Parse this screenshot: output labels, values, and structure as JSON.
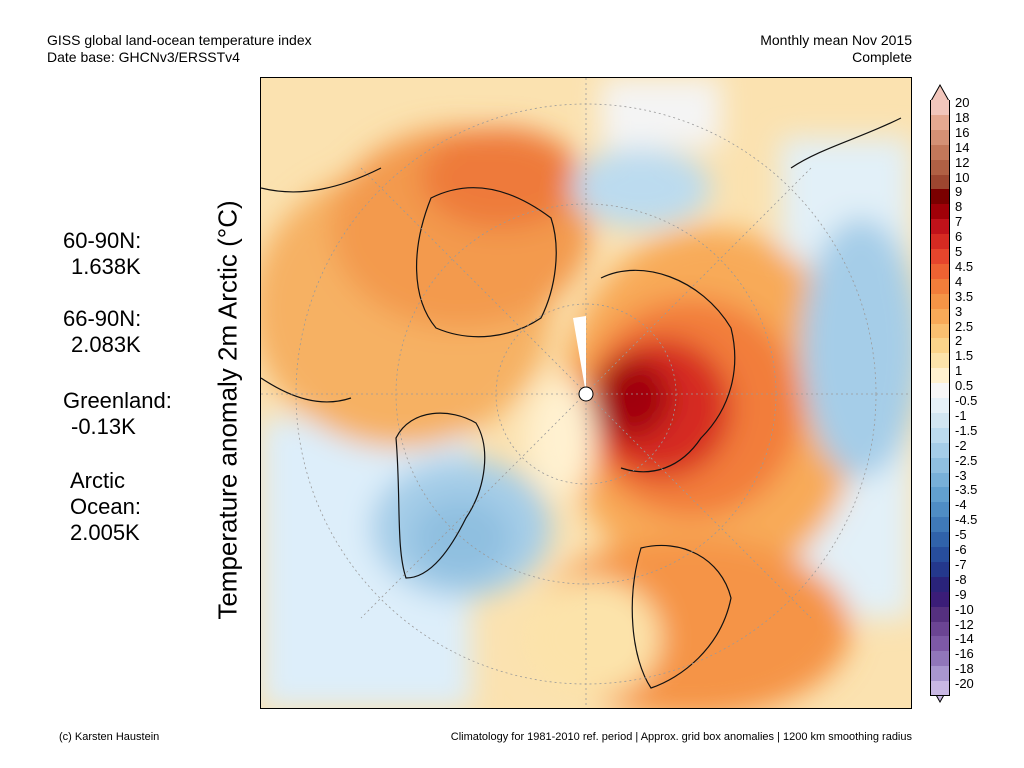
{
  "header": {
    "left_line1": "GISS global land-ocean temperature index",
    "left_line2": "Date base: GHCNv3/ERSSTv4",
    "right_line1": "Monthly mean Nov 2015",
    "right_line2": "Complete"
  },
  "axis_label": "Temperature anomaly 2m Arctic (°C)",
  "stats": [
    {
      "name": "60-90N:",
      "value": "1.638K"
    },
    {
      "name": "66-90N:",
      "value": "2.083K"
    },
    {
      "name": "Greenland:",
      "value": "-0.13K"
    },
    {
      "name": "Arctic Ocean:",
      "value": "2.005K"
    }
  ],
  "colorbar": {
    "labels": [
      "20",
      "18",
      "16",
      "14",
      "12",
      "10",
      "9",
      "8",
      "7",
      "6",
      "5",
      "4.5",
      "4",
      "3.5",
      "3",
      "2.5",
      "2",
      "1.5",
      "1",
      "0.5",
      "-0.5",
      "-1",
      "-1.5",
      "-2",
      "-2.5",
      "-3",
      "-3.5",
      "-4",
      "-4.5",
      "-5",
      "-6",
      "-7",
      "-8",
      "-9",
      "-10",
      "-12",
      "-14",
      "-16",
      "-18",
      "-20"
    ],
    "colors": [
      "#f2c6bb",
      "#e5a890",
      "#d59175",
      "#c4785a",
      "#b06044",
      "#9c4630",
      "#7a0000",
      "#a00008",
      "#c0121a",
      "#d62a22",
      "#e6452c",
      "#ee6232",
      "#f27d3a",
      "#f59446",
      "#f8aa58",
      "#fac070",
      "#fbd48a",
      "#fce3aa",
      "#fff1d0",
      "#f7f7f7",
      "#e6f1f8",
      "#d2e6f2",
      "#bcdbef",
      "#a5cde8",
      "#8fbfe0",
      "#78b0d8",
      "#62a0cf",
      "#4f8dc4",
      "#3f79b8",
      "#3062aa",
      "#274d9c",
      "#24388c",
      "#2a237a",
      "#3b1d78",
      "#55307f",
      "#6b4493",
      "#7d59a6",
      "#9076ba",
      "#a896cf",
      "#c9b8e4"
    ]
  },
  "footer": {
    "left": "(c) Karsten Haustein",
    "right": "Climatology for 1981-2010 ref. period | Approx. grid box anomalies | 1200 km smoothing radius"
  }
}
